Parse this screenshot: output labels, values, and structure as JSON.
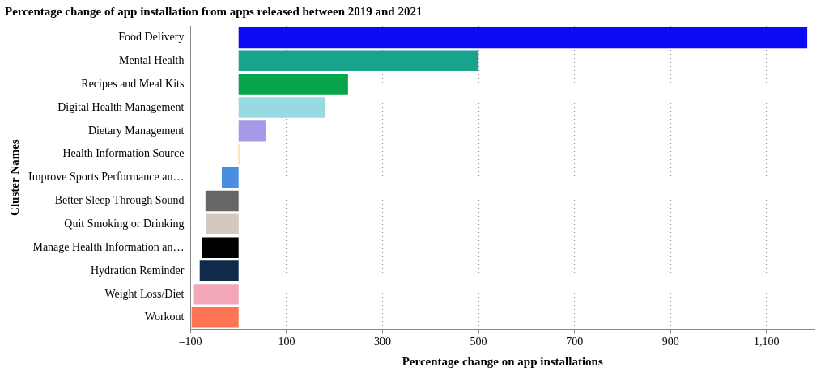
{
  "chart_data": {
    "type": "bar",
    "orientation": "horizontal",
    "title": "Percentage change of app installation from apps released between 2019 and 2021",
    "xlabel": "Percentage change on app installations",
    "ylabel": "Cluster Names",
    "categories": [
      "Food Delivery",
      "Mental Health",
      "Recipes and Meal Kits",
      "Digital Health Management",
      "Dietary Management",
      "Health Information Source",
      "Improve Sports Performance an…",
      "Better Sleep Through Sound",
      "Quit Smoking or Drinking",
      "Manage Health Information an…",
      "Hydration Reminder",
      "Weight Loss/Diet",
      "Workout"
    ],
    "values": [
      1185,
      500,
      228,
      181,
      57,
      1,
      -35,
      -69,
      -68,
      -76,
      -81,
      -93,
      -98
    ],
    "colors": [
      "#0a0af5",
      "#1aa38c",
      "#06a54b",
      "#98d9e4",
      "#a69ae8",
      "#f5a623",
      "#4a8ee0",
      "#666666",
      "#d4c9be",
      "#000000",
      "#0f2a4a",
      "#f3a6b8",
      "#ff7452"
    ],
    "xlim": [
      -100,
      1200
    ],
    "xticks": [
      {
        "value": -100,
        "label": "–100"
      },
      100,
      300,
      500,
      700,
      900,
      {
        "value": 1100,
        "label": "1,100"
      }
    ],
    "grid": true
  }
}
